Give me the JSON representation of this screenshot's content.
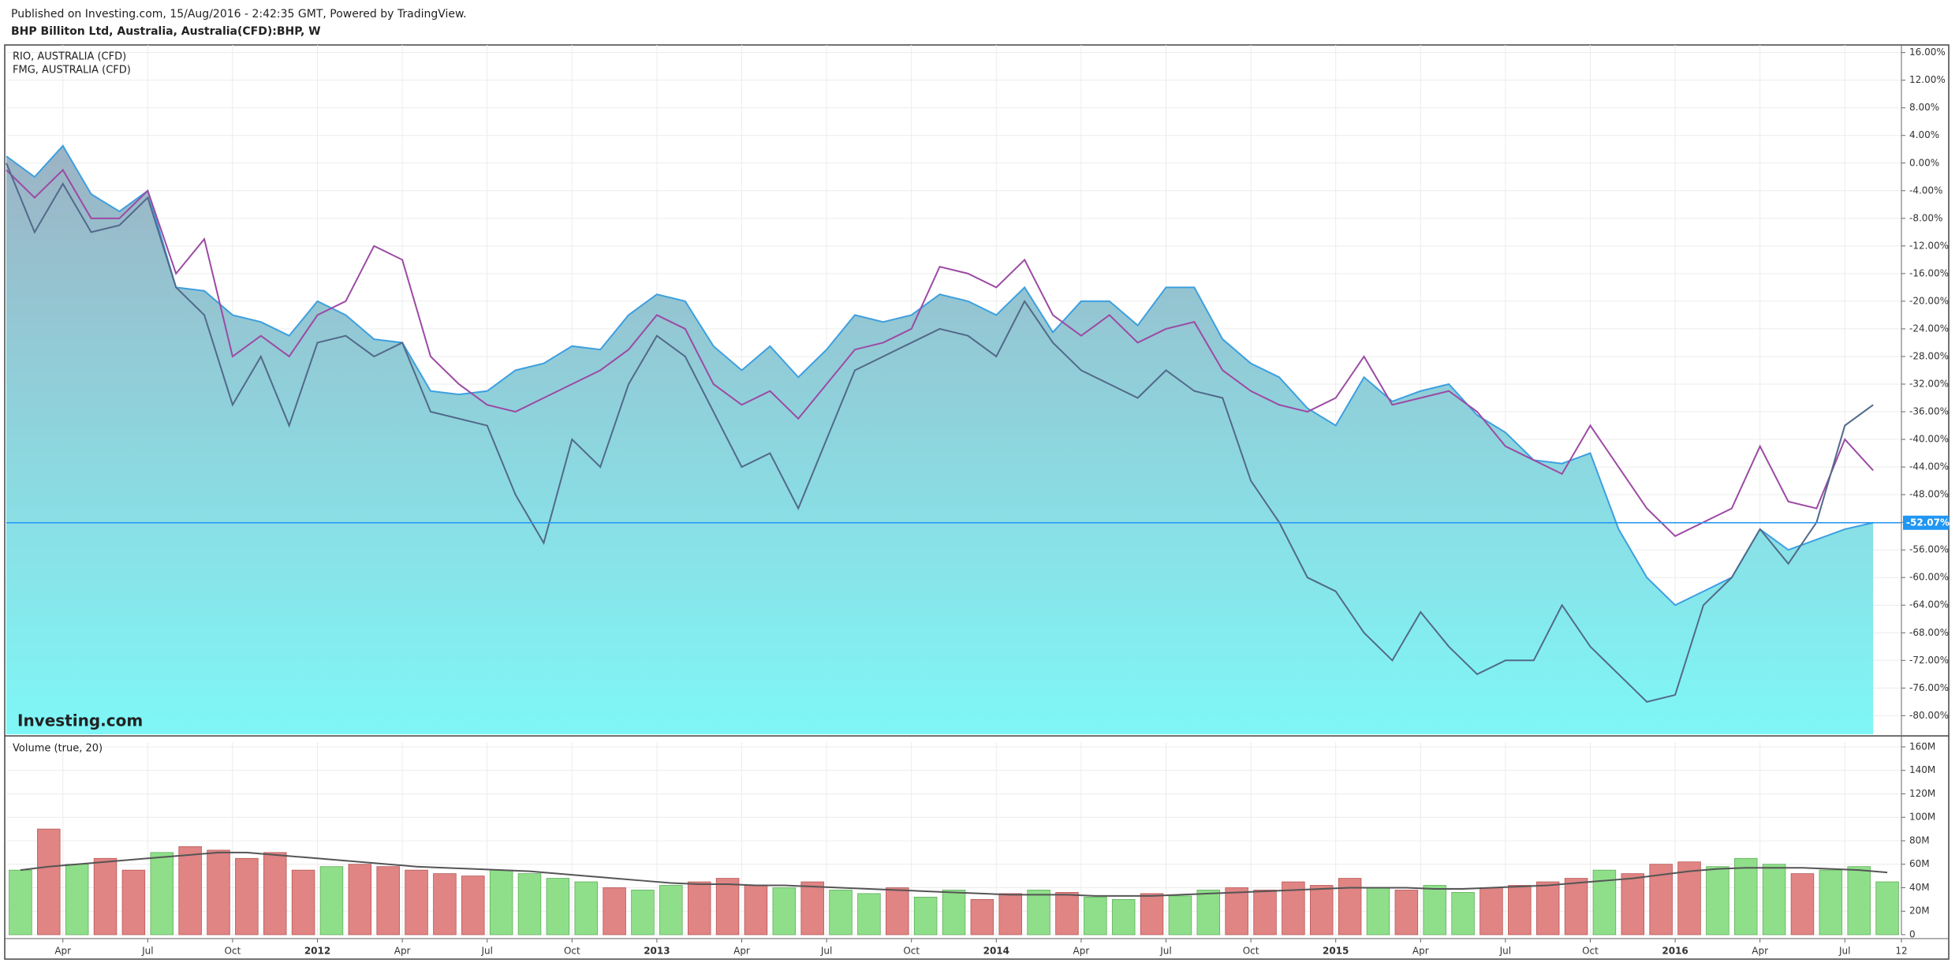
{
  "chart_data": [
    {
      "type": "line",
      "source": "Published on Investing.com, 15/Aug/2016 - 2:42:35 GMT, Powered by TradingView.",
      "title": "BHP Billiton Ltd, Australia, Australia(CFD):BHP, W",
      "watermark": "Investing.com",
      "x": [
        "2011-02",
        "2011-03",
        "2011-04",
        "2011-05",
        "2011-06",
        "2011-07",
        "2011-08",
        "2011-09",
        "2011-10",
        "2011-11",
        "2011-12",
        "2012-01",
        "2012-02",
        "2012-03",
        "2012-04",
        "2012-05",
        "2012-06",
        "2012-07",
        "2012-08",
        "2012-09",
        "2012-10",
        "2012-11",
        "2012-12",
        "2013-01",
        "2013-02",
        "2013-03",
        "2013-04",
        "2013-05",
        "2013-06",
        "2013-07",
        "2013-08",
        "2013-09",
        "2013-10",
        "2013-11",
        "2013-12",
        "2014-01",
        "2014-02",
        "2014-03",
        "2014-04",
        "2014-05",
        "2014-06",
        "2014-07",
        "2014-08",
        "2014-09",
        "2014-10",
        "2014-11",
        "2014-12",
        "2015-01",
        "2015-02",
        "2015-03",
        "2015-04",
        "2015-05",
        "2015-06",
        "2015-07",
        "2015-08",
        "2015-09",
        "2015-10",
        "2015-11",
        "2015-12",
        "2016-01",
        "2016-02",
        "2016-03",
        "2016-04",
        "2016-05",
        "2016-06",
        "2016-07",
        "2016-08"
      ],
      "series": [
        {
          "type": "area",
          "color": "#3d9fe0",
          "fill_top": "#9cb3c4",
          "fill_bottom": "#7ff7f7",
          "values": [
            1,
            -2,
            2.5,
            -4.5,
            -7,
            -4,
            -18,
            -18.5,
            -22,
            -23,
            -25,
            -20,
            -22,
            -25.5,
            -26,
            -33,
            -33.5,
            -33,
            -30,
            -29,
            -26.5,
            -27,
            -22,
            -19,
            -20,
            -26.5,
            -30,
            -26.5,
            -31,
            -27,
            -22,
            -23,
            -22,
            -19,
            -20,
            -22,
            -18,
            -24.5,
            -20,
            -20,
            -23.5,
            -18,
            -18,
            -25.5,
            -29,
            -31,
            -35.5,
            -38,
            -31,
            -34.5,
            -33,
            -32,
            -36.5,
            -39,
            -43,
            -43.5,
            -42,
            -53,
            -60,
            -64,
            -62,
            -60,
            -53,
            -56,
            -54.5,
            -53,
            -52.07
          ]
        },
        {
          "type": "line",
          "name": "RIO, AUSTRALIA (CFD)",
          "color": "#9c4aa4",
          "values": [
            -1,
            -5,
            -1,
            -8,
            -8,
            -4,
            -16,
            -11,
            -28,
            -25,
            -28,
            -22,
            -20,
            -12,
            -14,
            -28,
            -32,
            -35,
            -36,
            -34,
            -32,
            -30,
            -27,
            -22,
            -24,
            -32,
            -35,
            -33,
            -37,
            -32,
            -27,
            -26,
            -24,
            -15,
            -16,
            -18,
            -14,
            -22,
            -25,
            -22,
            -26,
            -24,
            -23,
            -30,
            -33,
            -35,
            -36,
            -34,
            -28,
            -35,
            -34,
            -33,
            -36,
            -41,
            -43,
            -45,
            -38,
            -44,
            -50,
            -54,
            -52,
            -50,
            -41,
            -49,
            -50,
            -40,
            -44.5
          ]
        },
        {
          "type": "line",
          "name": "FMG, AUSTRALIA (CFD)",
          "color": "#52698a",
          "values": [
            0,
            -10,
            -3,
            -10,
            -9,
            -5,
            -18,
            -22,
            -35,
            -28,
            -38,
            -26,
            -25,
            -28,
            -26,
            -36,
            -37,
            -38,
            -48,
            -55,
            -40,
            -44,
            -32,
            -25,
            -28,
            -36,
            -44,
            -42,
            -50,
            -40,
            -30,
            -28,
            -26,
            -24,
            -25,
            -28,
            -20,
            -26,
            -30,
            -32,
            -34,
            -30,
            -33,
            -34,
            -46,
            -52,
            -60,
            -62,
            -68,
            -72,
            -65,
            -70,
            -74,
            -72,
            -72,
            -64,
            -70,
            -74,
            -78,
            -77,
            -64,
            -60,
            -53,
            -58,
            -52,
            -38,
            -35
          ]
        }
      ],
      "xlim": [
        "2011-02",
        "2016-09"
      ],
      "ylim": [
        -82.7,
        17.1
      ],
      "yticks": [
        {
          "value": 16,
          "label": "16.00%"
        },
        {
          "value": 12,
          "label": "12.00%"
        },
        {
          "value": 8,
          "label": "8.00%"
        },
        {
          "value": 4,
          "label": "4.00%"
        },
        {
          "value": 0,
          "label": "0.00%"
        },
        {
          "value": -4,
          "label": "-4.00%"
        },
        {
          "value": -8,
          "label": "-8.00%"
        },
        {
          "value": -12,
          "label": "-12.00%"
        },
        {
          "value": -16,
          "label": "-16.00%"
        },
        {
          "value": -20,
          "label": "-20.00%"
        },
        {
          "value": -24,
          "label": "-24.00%"
        },
        {
          "value": -28,
          "label": "-28.00%"
        },
        {
          "value": -32,
          "label": "-32.00%"
        },
        {
          "value": -36,
          "label": "-36.00%"
        },
        {
          "value": -40,
          "label": "-40.00%"
        },
        {
          "value": -44,
          "label": "-44.00%"
        },
        {
          "value": -48,
          "label": "-48.00%"
        },
        {
          "value": -52,
          "label": "-52.00%"
        },
        {
          "value": -56,
          "label": "-56.00%"
        },
        {
          "value": -60,
          "label": "-60.00%"
        },
        {
          "value": -64,
          "label": "-64.00%"
        },
        {
          "value": -68,
          "label": "-68.00%"
        },
        {
          "value": -72,
          "label": "-72.00%"
        },
        {
          "value": -76,
          "label": "-76.00%"
        },
        {
          "value": -80,
          "label": "-80.00%"
        }
      ],
      "last_value": {
        "value": -52.07,
        "label": "-52.07%",
        "color": "#2196f3"
      },
      "grid": true
    },
    {
      "type": "bar",
      "title": "Volume (true, 20)",
      "x": [
        "2011-02",
        "2011-03",
        "2011-04",
        "2011-05",
        "2011-06",
        "2011-07",
        "2011-08",
        "2011-09",
        "2011-10",
        "2011-11",
        "2011-12",
        "2012-01",
        "2012-02",
        "2012-03",
        "2012-04",
        "2012-05",
        "2012-06",
        "2012-07",
        "2012-08",
        "2012-09",
        "2012-10",
        "2012-11",
        "2012-12",
        "2013-01",
        "2013-02",
        "2013-03",
        "2013-04",
        "2013-05",
        "2013-06",
        "2013-07",
        "2013-08",
        "2013-09",
        "2013-10",
        "2013-11",
        "2013-12",
        "2014-01",
        "2014-02",
        "2014-03",
        "2014-04",
        "2014-05",
        "2014-06",
        "2014-07",
        "2014-08",
        "2014-09",
        "2014-10",
        "2014-11",
        "2014-12",
        "2015-01",
        "2015-02",
        "2015-03",
        "2015-04",
        "2015-05",
        "2015-06",
        "2015-07",
        "2015-08",
        "2015-09",
        "2015-10",
        "2015-11",
        "2015-12",
        "2016-01",
        "2016-02",
        "2016-03",
        "2016-04",
        "2016-05",
        "2016-06",
        "2016-07",
        "2016-08"
      ],
      "values": [
        55000000,
        90000000,
        60000000,
        65000000,
        55000000,
        70000000,
        75000000,
        72000000,
        65000000,
        70000000,
        55000000,
        58000000,
        60000000,
        58000000,
        55000000,
        52000000,
        50000000,
        55000000,
        52000000,
        48000000,
        45000000,
        40000000,
        38000000,
        42000000,
        45000000,
        48000000,
        42000000,
        40000000,
        45000000,
        38000000,
        35000000,
        40000000,
        32000000,
        38000000,
        30000000,
        35000000,
        38000000,
        36000000,
        32000000,
        30000000,
        35000000,
        33000000,
        38000000,
        40000000,
        38000000,
        45000000,
        42000000,
        48000000,
        40000000,
        38000000,
        42000000,
        36000000,
        40000000,
        42000000,
        45000000,
        48000000,
        55000000,
        52000000,
        60000000,
        62000000,
        58000000,
        65000000,
        60000000,
        52000000,
        55000000,
        58000000,
        45000000
      ],
      "ma_values": [
        55000000,
        58000000,
        60000000,
        62000000,
        64000000,
        66000000,
        68000000,
        70000000,
        70000000,
        68000000,
        66000000,
        64000000,
        62000000,
        60000000,
        58000000,
        57000000,
        56000000,
        55000000,
        54000000,
        52000000,
        50000000,
        48000000,
        46000000,
        44000000,
        43000000,
        43000000,
        42000000,
        42000000,
        41000000,
        40000000,
        39000000,
        38000000,
        37000000,
        36000000,
        35000000,
        34000000,
        34000000,
        34000000,
        33000000,
        33000000,
        33000000,
        34000000,
        35000000,
        36000000,
        37000000,
        38000000,
        39000000,
        40000000,
        40000000,
        40000000,
        39000000,
        39000000,
        40000000,
        41000000,
        42000000,
        44000000,
        46000000,
        48000000,
        51000000,
        54000000,
        56000000,
        57000000,
        57000000,
        57000000,
        56000000,
        55000000,
        53000000
      ],
      "up_color": "#8fdf8a",
      "down_color": "#e08484",
      "ma_color": "#555555",
      "xlim": [
        "2011-02",
        "2016-09"
      ],
      "xticks": [
        {
          "value": "2011-04",
          "label": "Apr"
        },
        {
          "value": "2011-07",
          "label": "Jul"
        },
        {
          "value": "2011-10",
          "label": "Oct"
        },
        {
          "value": "2012-01",
          "label": "2012"
        },
        {
          "value": "2012-04",
          "label": "Apr"
        },
        {
          "value": "2012-07",
          "label": "Jul"
        },
        {
          "value": "2012-10",
          "label": "Oct"
        },
        {
          "value": "2013-01",
          "label": "2013"
        },
        {
          "value": "2013-04",
          "label": "Apr"
        },
        {
          "value": "2013-07",
          "label": "Jul"
        },
        {
          "value": "2013-10",
          "label": "Oct"
        },
        {
          "value": "2014-01",
          "label": "2014"
        },
        {
          "value": "2014-04",
          "label": "Apr"
        },
        {
          "value": "2014-07",
          "label": "Jul"
        },
        {
          "value": "2014-10",
          "label": "Oct"
        },
        {
          "value": "2015-01",
          "label": "2015"
        },
        {
          "value": "2015-04",
          "label": "Apr"
        },
        {
          "value": "2015-07",
          "label": "Jul"
        },
        {
          "value": "2015-10",
          "label": "Oct"
        },
        {
          "value": "2016-01",
          "label": "2016"
        },
        {
          "value": "2016-04",
          "label": "Apr"
        },
        {
          "value": "2016-07",
          "label": "Jul"
        },
        {
          "value": "2016-09",
          "label": "12"
        }
      ],
      "ylim": [
        0,
        164000000
      ],
      "yticks": [
        0,
        {
          "value": 20000000,
          "label": "20M"
        },
        {
          "value": 40000000,
          "label": "40M"
        },
        {
          "value": 60000000,
          "label": "60M"
        },
        {
          "value": 80000000,
          "label": "80M"
        },
        {
          "value": 100000000,
          "label": "100M"
        },
        {
          "value": 120000000,
          "label": "120M"
        },
        {
          "value": 140000000,
          "label": "140M"
        },
        {
          "value": 160000000,
          "label": "160M"
        }
      ],
      "grid": true
    }
  ]
}
